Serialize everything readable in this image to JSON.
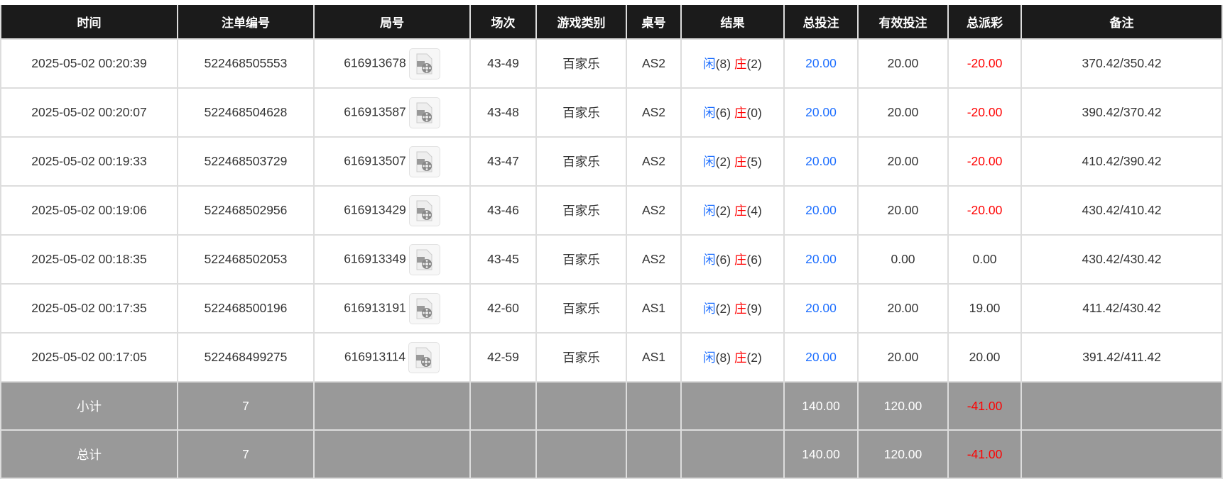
{
  "headers": [
    "时间",
    "注单编号",
    "局号",
    "场次",
    "游戏类别",
    "桌号",
    "结果",
    "总投注",
    "有效投注",
    "总派彩",
    "备注"
  ],
  "rows": [
    {
      "time": "2025-05-02 00:20:39",
      "bet_id": "522468505553",
      "round": "616913678",
      "session": "43-49",
      "game": "百家乐",
      "table": "AS2",
      "player_label": "闲",
      "player": "(8)",
      "banker_label": "庄",
      "banker": "(2)",
      "total_bet": "20.00",
      "valid_bet": "20.00",
      "payout": "-20.00",
      "payout_negative": true,
      "remark": "370.42/350.42"
    },
    {
      "time": "2025-05-02 00:20:07",
      "bet_id": "522468504628",
      "round": "616913587",
      "session": "43-48",
      "game": "百家乐",
      "table": "AS2",
      "player_label": "闲",
      "player": "(6)",
      "banker_label": "庄",
      "banker": "(0)",
      "total_bet": "20.00",
      "valid_bet": "20.00",
      "payout": "-20.00",
      "payout_negative": true,
      "remark": "390.42/370.42"
    },
    {
      "time": "2025-05-02 00:19:33",
      "bet_id": "522468503729",
      "round": "616913507",
      "session": "43-47",
      "game": "百家乐",
      "table": "AS2",
      "player_label": "闲",
      "player": "(2)",
      "banker_label": "庄",
      "banker": "(5)",
      "total_bet": "20.00",
      "valid_bet": "20.00",
      "payout": "-20.00",
      "payout_negative": true,
      "remark": "410.42/390.42"
    },
    {
      "time": "2025-05-02 00:19:06",
      "bet_id": "522468502956",
      "round": "616913429",
      "session": "43-46",
      "game": "百家乐",
      "table": "AS2",
      "player_label": "闲",
      "player": "(2)",
      "banker_label": "庄",
      "banker": "(4)",
      "total_bet": "20.00",
      "valid_bet": "20.00",
      "payout": "-20.00",
      "payout_negative": true,
      "remark": "430.42/410.42"
    },
    {
      "time": "2025-05-02 00:18:35",
      "bet_id": "522468502053",
      "round": "616913349",
      "session": "43-45",
      "game": "百家乐",
      "table": "AS2",
      "player_label": "闲",
      "player": "(6)",
      "banker_label": "庄",
      "banker": "(6)",
      "total_bet": "20.00",
      "valid_bet": "0.00",
      "payout": "0.00",
      "payout_negative": false,
      "remark": "430.42/430.42"
    },
    {
      "time": "2025-05-02 00:17:35",
      "bet_id": "522468500196",
      "round": "616913191",
      "session": "42-60",
      "game": "百家乐",
      "table": "AS1",
      "player_label": "闲",
      "player": "(2)",
      "banker_label": "庄",
      "banker": "(9)",
      "total_bet": "20.00",
      "valid_bet": "20.00",
      "payout": "19.00",
      "payout_negative": false,
      "remark": "411.42/430.42"
    },
    {
      "time": "2025-05-02 00:17:05",
      "bet_id": "522468499275",
      "round": "616913114",
      "session": "42-59",
      "game": "百家乐",
      "table": "AS1",
      "player_label": "闲",
      "player": "(8)",
      "banker_label": "庄",
      "banker": "(2)",
      "total_bet": "20.00",
      "valid_bet": "20.00",
      "payout": "20.00",
      "payout_negative": false,
      "remark": "391.42/411.42"
    }
  ],
  "subtotal": {
    "label": "小计",
    "count": "7",
    "total_bet": "140.00",
    "valid_bet": "120.00",
    "payout": "-41.00"
  },
  "total": {
    "label": "总计",
    "count": "7",
    "total_bet": "140.00",
    "valid_bet": "120.00",
    "payout": "-41.00"
  },
  "colors": {
    "header_bg": "#1b1b1b",
    "player": "#1e6fff",
    "banker": "#ff0000",
    "negative": "#ff0000",
    "summary_bg": "#999999"
  },
  "icons": {
    "replay": "video-file-icon"
  }
}
